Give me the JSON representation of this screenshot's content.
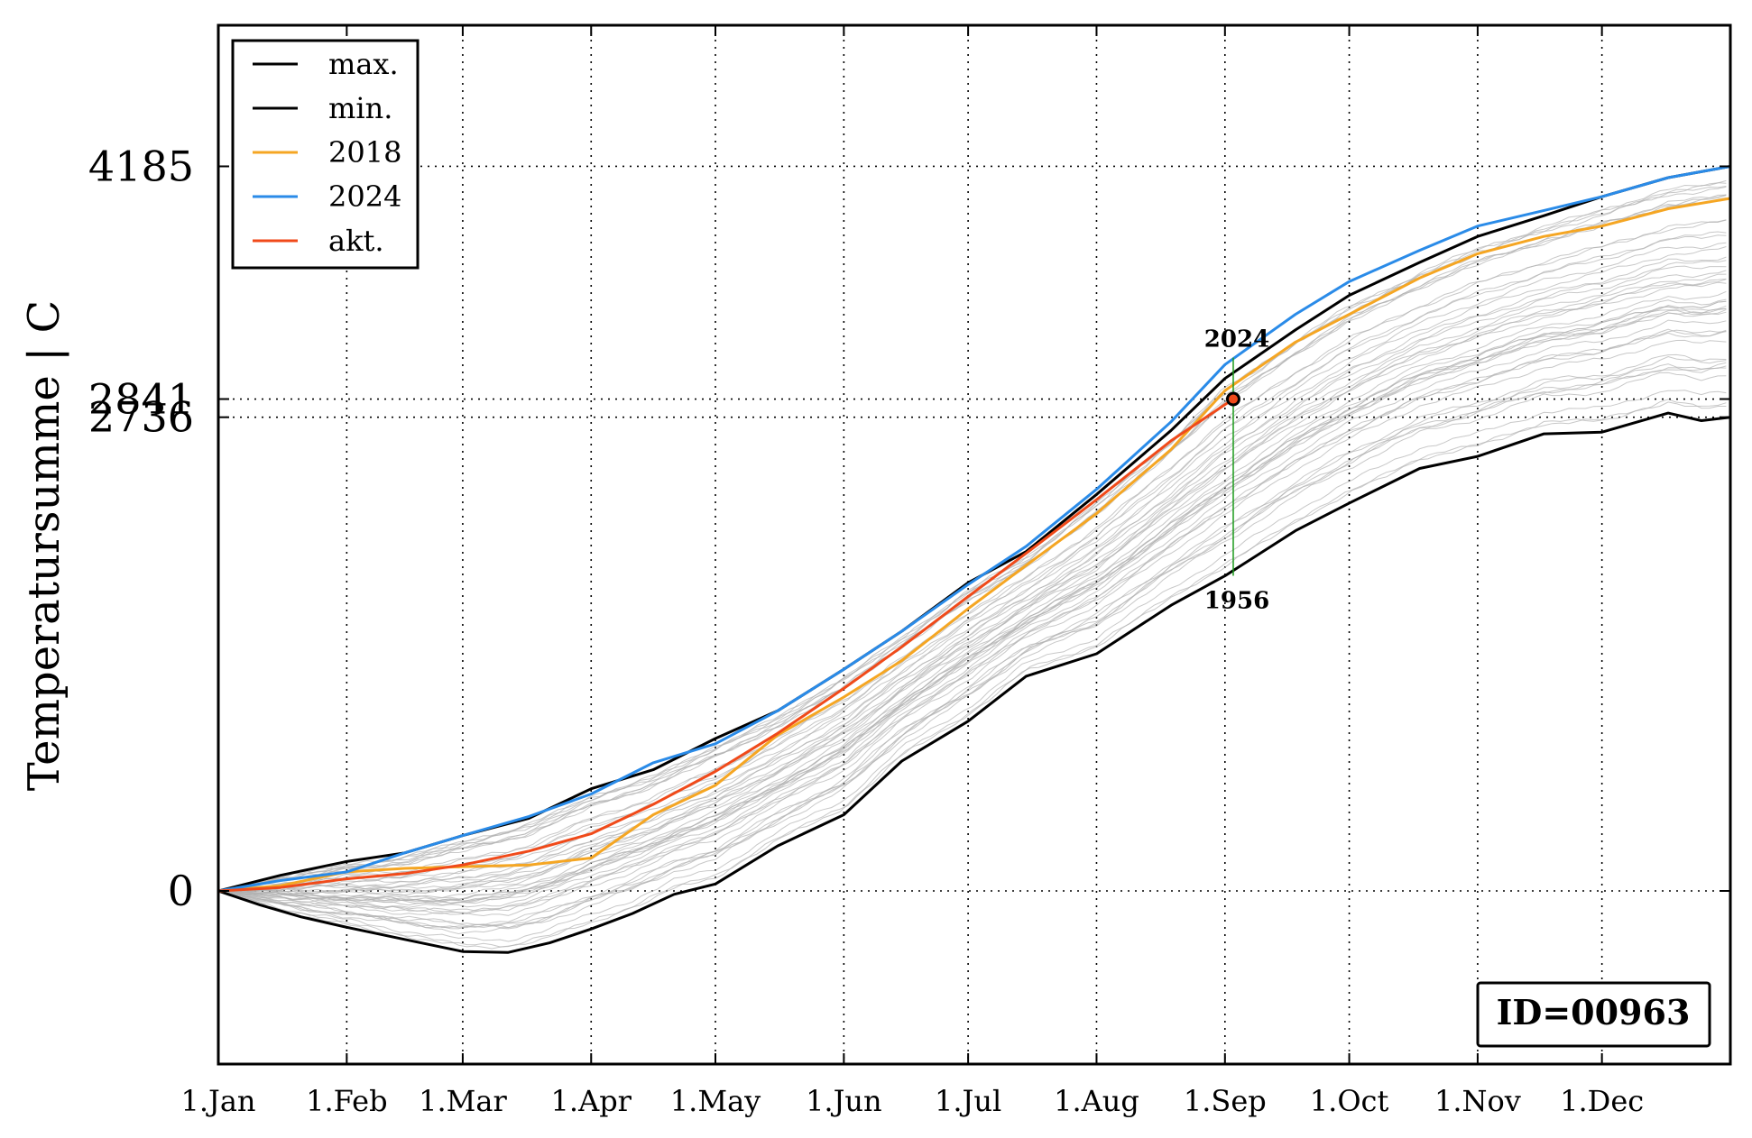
{
  "chart_data": {
    "type": "line",
    "ylabel": "Temperatursumme | C",
    "xlabel": "",
    "id_label": "ID=00963",
    "x_ticks": [
      "1.Jan",
      "1.Feb",
      "1.Mar",
      "1.Apr",
      "1.May",
      "1.Jun",
      "1.Jul",
      "1.Aug",
      "1.Sep",
      "1.Oct",
      "1.Nov",
      "1.Dec"
    ],
    "x_tick_days": [
      0,
      31,
      59,
      90,
      120,
      151,
      181,
      212,
      243,
      273,
      304,
      334
    ],
    "xlim": [
      0,
      365
    ],
    "y_ticks": [
      0,
      2736,
      2841,
      4185
    ],
    "ylim": [
      -1000,
      5000
    ],
    "grid": true,
    "legend_position": "top-left",
    "legend": [
      "max.",
      "min.",
      "2018",
      "2024",
      "akt."
    ],
    "annotations": {
      "day": 245,
      "current_value": 2841,
      "upper_label": "2024",
      "upper_value": 3080,
      "lower_label": "1956",
      "lower_value": 1820
    },
    "series": [
      {
        "name": "max.",
        "color": "#000000",
        "x": [
          0,
          15,
          31,
          45,
          59,
          75,
          90,
          105,
          120,
          135,
          151,
          165,
          181,
          195,
          212,
          230,
          243,
          260,
          273,
          290,
          304,
          320,
          334,
          350,
          365
        ],
        "y": [
          0,
          90,
          170,
          220,
          320,
          420,
          590,
          700,
          880,
          1040,
          1280,
          1500,
          1780,
          1960,
          2290,
          2660,
          2960,
          3240,
          3440,
          3630,
          3780,
          3900,
          4010,
          4120,
          4185
        ]
      },
      {
        "name": "min.",
        "color": "#000000",
        "x": [
          0,
          10,
          20,
          31,
          45,
          59,
          70,
          80,
          90,
          100,
          110,
          120,
          135,
          151,
          165,
          181,
          195,
          212,
          230,
          243,
          260,
          273,
          290,
          304,
          320,
          334,
          350,
          358,
          365
        ],
        "y": [
          0,
          -80,
          -150,
          -210,
          -280,
          -350,
          -355,
          -300,
          -220,
          -130,
          -20,
          40,
          260,
          440,
          750,
          980,
          1240,
          1370,
          1650,
          1820,
          2080,
          2240,
          2440,
          2510,
          2640,
          2650,
          2760,
          2716,
          2736
        ]
      },
      {
        "name": "2018",
        "color": "#f5a623",
        "x": [
          0,
          15,
          31,
          45,
          59,
          75,
          90,
          105,
          120,
          135,
          151,
          165,
          181,
          195,
          212,
          230,
          243,
          260,
          273,
          290,
          304,
          320,
          334,
          350,
          365
        ],
        "y": [
          0,
          30,
          110,
          130,
          140,
          150,
          190,
          440,
          610,
          900,
          1120,
          1330,
          1630,
          1880,
          2180,
          2550,
          2890,
          3170,
          3330,
          3540,
          3680,
          3780,
          3840,
          3940,
          4000
        ]
      },
      {
        "name": "2024",
        "color": "#2a8be8",
        "x": [
          0,
          15,
          31,
          45,
          59,
          75,
          90,
          105,
          120,
          135,
          151,
          165,
          181,
          195,
          212,
          230,
          243,
          260,
          273,
          290,
          304,
          320,
          334,
          350,
          365
        ],
        "y": [
          0,
          60,
          110,
          220,
          320,
          430,
          560,
          740,
          850,
          1040,
          1280,
          1500,
          1770,
          1990,
          2320,
          2710,
          3040,
          3330,
          3520,
          3700,
          3840,
          3930,
          4010,
          4120,
          4185
        ]
      },
      {
        "name": "akt.",
        "color": "#f04a1a",
        "x": [
          0,
          15,
          31,
          45,
          59,
          75,
          90,
          105,
          120,
          135,
          151,
          165,
          181,
          195,
          212,
          230,
          245
        ],
        "y": [
          0,
          20,
          70,
          100,
          150,
          230,
          330,
          500,
          690,
          910,
          1170,
          1410,
          1700,
          1950,
          2260,
          2600,
          2841
        ]
      }
    ]
  }
}
